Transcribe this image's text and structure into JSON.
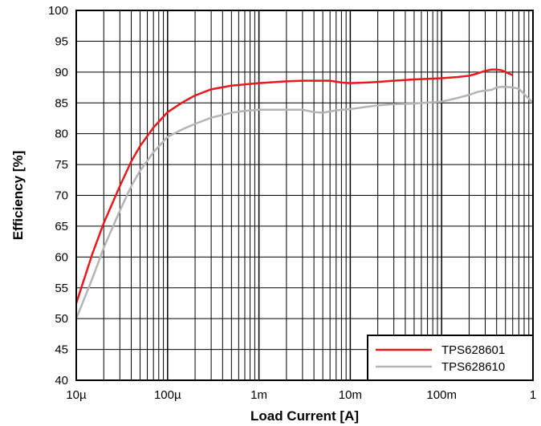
{
  "chart_data": {
    "type": "line",
    "xlabel": "Load Current [A]",
    "ylabel": "Efficiency [%]",
    "x_scale": "log",
    "xlim": [
      1e-05,
      1
    ],
    "ylim": [
      40,
      100
    ],
    "grid": true,
    "legend_position": "bottom-right",
    "x_tick_values": [
      1e-05,
      0.0001,
      0.001,
      0.01,
      0.1,
      1
    ],
    "x_tick_labels": [
      "10µ",
      "100µ",
      "1m",
      "10m",
      "100m",
      "1"
    ],
    "y_ticks": [
      40,
      45,
      50,
      55,
      60,
      65,
      70,
      75,
      80,
      85,
      90,
      95,
      100
    ],
    "series": [
      {
        "name": "TPS628601",
        "color": "#e8191c",
        "x": [
          1e-05,
          1.5e-05,
          2e-05,
          3e-05,
          4e-05,
          5e-05,
          7e-05,
          0.0001,
          0.00015,
          0.0002,
          0.0003,
          0.0005,
          0.0007,
          0.001,
          0.002,
          0.003,
          0.005,
          0.006,
          0.008,
          0.01,
          0.015,
          0.02,
          0.03,
          0.05,
          0.1,
          0.15,
          0.2,
          0.25,
          0.3,
          0.35,
          0.4,
          0.45,
          0.5,
          0.6
        ],
        "y": [
          52.5,
          60.5,
          65.5,
          71.5,
          75.5,
          78.0,
          81.0,
          83.5,
          85.2,
          86.2,
          87.2,
          87.8,
          88.0,
          88.2,
          88.5,
          88.6,
          88.6,
          88.6,
          88.3,
          88.2,
          88.3,
          88.4,
          88.6,
          88.8,
          89.0,
          89.2,
          89.4,
          89.8,
          90.2,
          90.4,
          90.4,
          90.3,
          90.0,
          89.5
        ]
      },
      {
        "name": "TPS628610",
        "color": "#b4b4b4",
        "x": [
          1e-05,
          1.5e-05,
          2e-05,
          3e-05,
          4e-05,
          5e-05,
          7e-05,
          0.0001,
          0.00015,
          0.0002,
          0.0003,
          0.0005,
          0.0007,
          0.001,
          0.002,
          0.003,
          0.004,
          0.005,
          0.007,
          0.01,
          0.02,
          0.03,
          0.05,
          0.1,
          0.15,
          0.2,
          0.25,
          0.3,
          0.35,
          0.4,
          0.45,
          0.5,
          0.6,
          0.7,
          1
        ],
        "y": [
          50.0,
          56.5,
          61.5,
          67.5,
          71.5,
          74.0,
          77.0,
          79.5,
          80.8,
          81.6,
          82.6,
          83.4,
          83.7,
          83.9,
          83.9,
          83.9,
          83.5,
          83.4,
          83.8,
          84.0,
          84.6,
          84.8,
          84.9,
          85.2,
          85.8,
          86.3,
          86.8,
          87.0,
          87.1,
          87.5,
          87.6,
          87.6,
          87.5,
          87.3,
          85.0
        ]
      }
    ]
  }
}
